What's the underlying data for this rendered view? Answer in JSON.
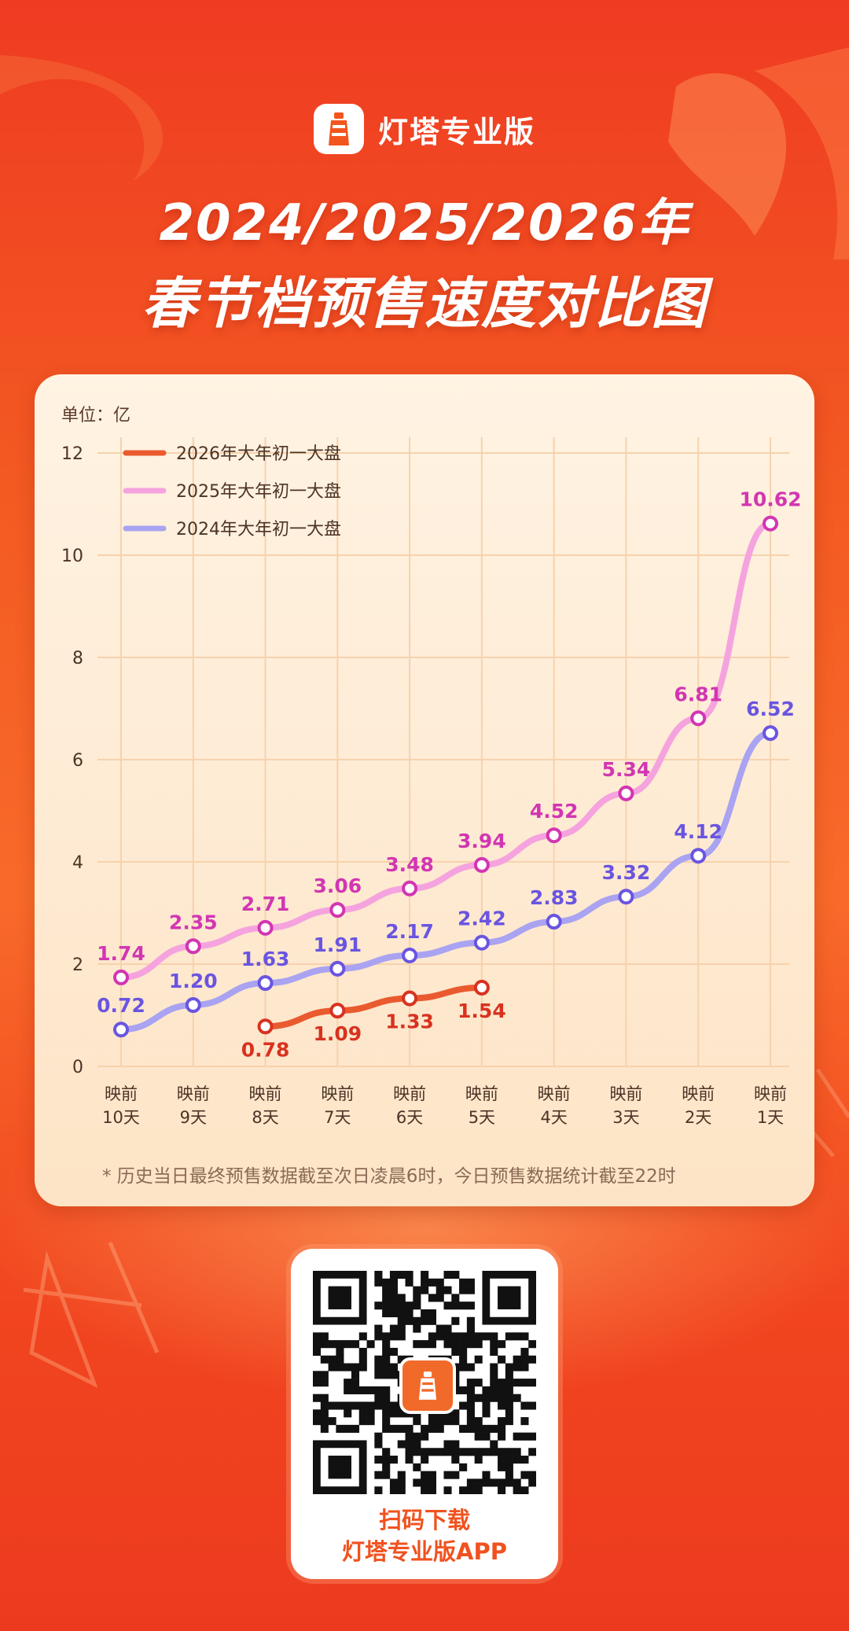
{
  "brand": {
    "name": "灯塔专业版",
    "logo_icon": "lighthouse-icon"
  },
  "title": {
    "line1": "2024/2025/2026年",
    "line2": "春节档预售速度对比图"
  },
  "chart_data": {
    "type": "line",
    "unit": "单位：亿",
    "categories": [
      [
        "映前",
        "10天"
      ],
      [
        "映前",
        "9天"
      ],
      [
        "映前",
        "8天"
      ],
      [
        "映前",
        "7天"
      ],
      [
        "映前",
        "6天"
      ],
      [
        "映前",
        "5天"
      ],
      [
        "映前",
        "4天"
      ],
      [
        "映前",
        "3天"
      ],
      [
        "映前",
        "2天"
      ],
      [
        "映前",
        "1天"
      ]
    ],
    "ylim": [
      0,
      12
    ],
    "yticks": [
      0,
      2,
      4,
      6,
      8,
      10,
      12
    ],
    "grid": true,
    "legend_position": "top-left",
    "series": [
      {
        "name": "2026年大年初一大盘",
        "color": "#ea5a2f",
        "label_color": "#d8321f",
        "values": [
          null,
          null,
          0.78,
          1.09,
          1.33,
          1.54,
          null,
          null,
          null,
          null
        ],
        "labels": [
          null,
          null,
          "0.78",
          "1.09",
          "1.33",
          "1.54",
          null,
          null,
          null,
          null
        ],
        "label_pos": "below"
      },
      {
        "name": "2025年大年初一大盘",
        "color": "#f5a3de",
        "label_color": "#d236b2",
        "values": [
          1.74,
          2.35,
          2.71,
          3.06,
          3.48,
          3.94,
          4.52,
          5.34,
          6.81,
          10.62
        ],
        "labels": [
          "1.74",
          "2.35",
          "2.71",
          "3.06",
          "3.48",
          "3.94",
          "4.52",
          "5.34",
          "6.81",
          "10.62"
        ],
        "label_pos": "above"
      },
      {
        "name": "2024年大年初一大盘",
        "color": "#a9a3f2",
        "label_color": "#6a55e0",
        "values": [
          0.72,
          1.2,
          1.63,
          1.91,
          2.17,
          2.42,
          2.83,
          3.32,
          4.12,
          6.52
        ],
        "labels": [
          "0.72",
          "1.20",
          "1.63",
          "1.91",
          "2.17",
          "2.42",
          "2.83",
          "3.32",
          "4.12",
          "6.52"
        ],
        "label_pos": "above"
      }
    ],
    "footnote": "* 历史当日最终预售数据截至次日凌晨6时，今日预售数据统计截至22时"
  },
  "qr": {
    "line1": "扫码下载",
    "line2": "灯塔专业版APP",
    "icon": "qr-code-icon"
  }
}
